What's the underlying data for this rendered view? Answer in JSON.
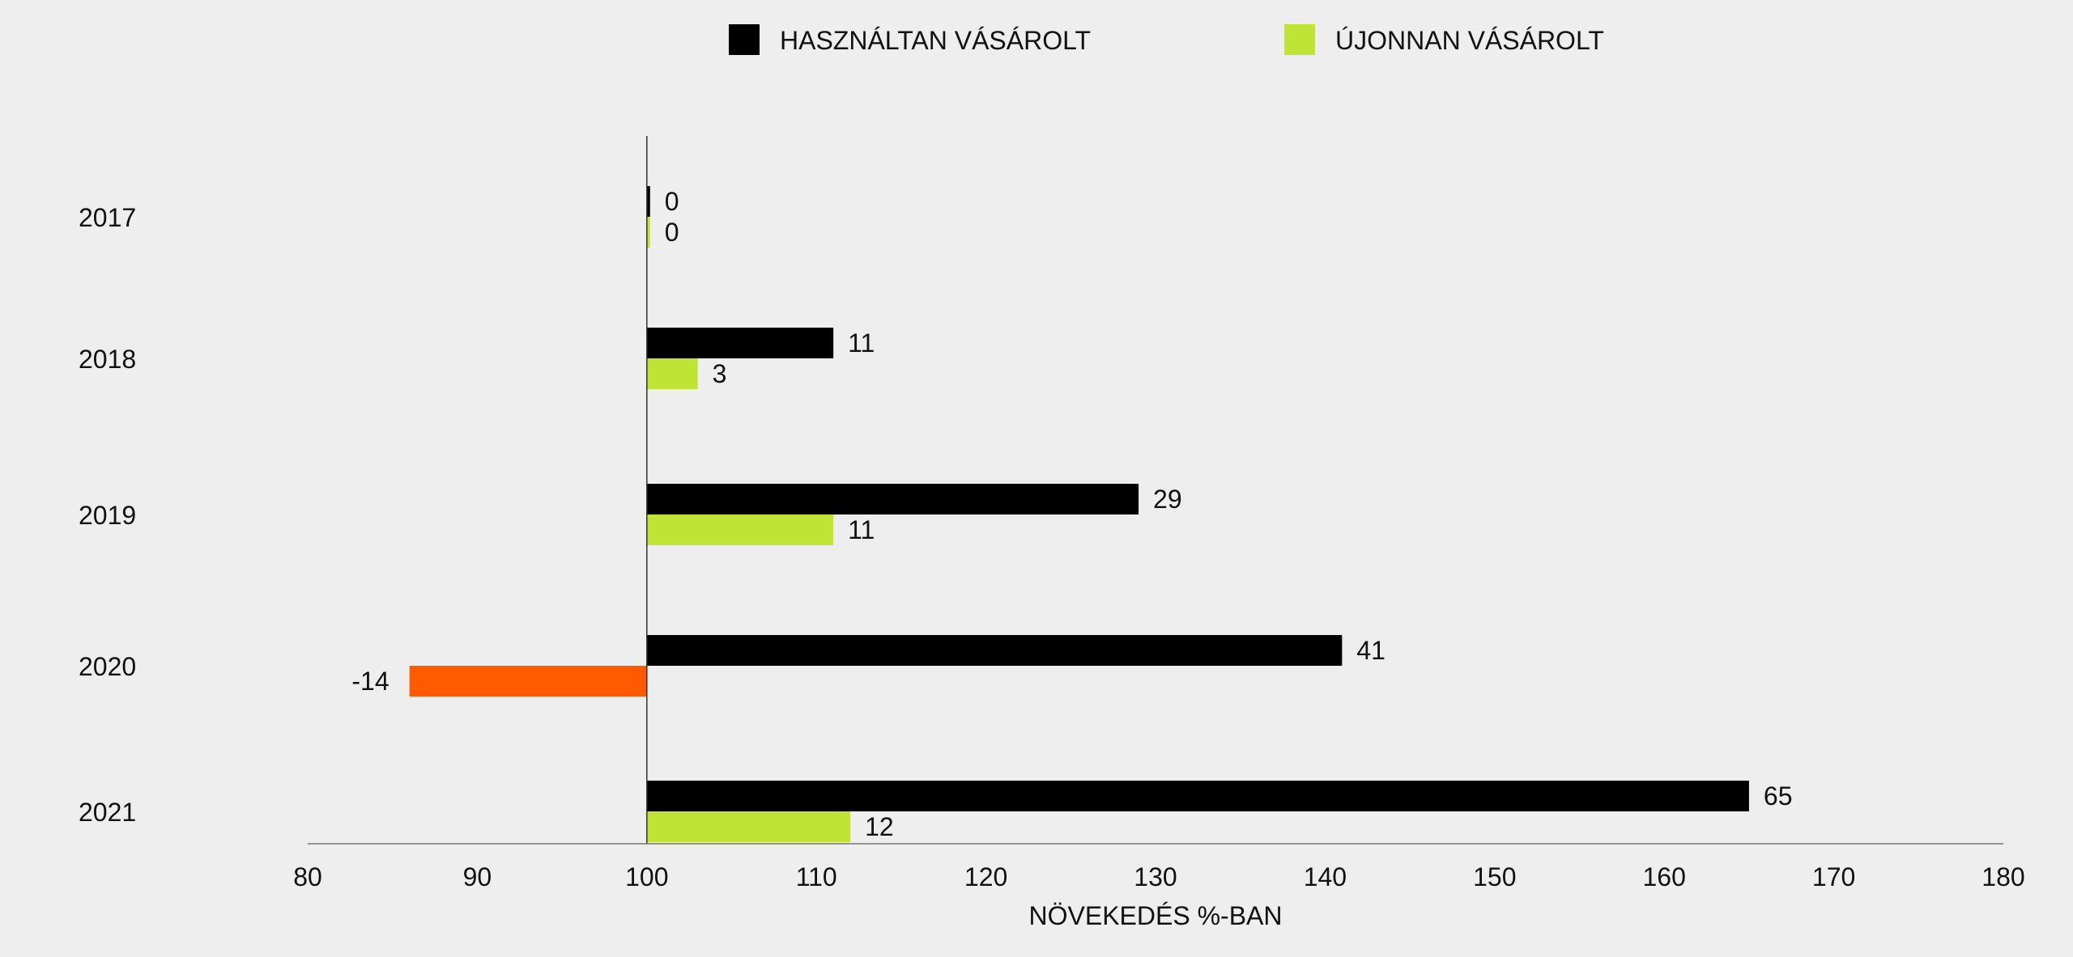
{
  "chart_data": {
    "type": "bar",
    "orientation": "horizontal",
    "title": "",
    "categories": [
      "2017",
      "2018",
      "2019",
      "2020",
      "2021"
    ],
    "series": [
      {
        "name": "HASZNÁLTAN VÁSÁROLT",
        "color": "#000000",
        "values": [
          0,
          11,
          29,
          41,
          65
        ],
        "labels": [
          "0",
          "11",
          "29",
          "41",
          "65"
        ]
      },
      {
        "name": "ÚJONNAN VÁSÁROLT",
        "color": "#bfe436",
        "values": [
          0,
          3,
          11,
          -14,
          12
        ],
        "labels": [
          "0",
          "3",
          "11",
          "-14",
          "12"
        ]
      }
    ],
    "negative_color": "#ff5a00",
    "baseline": 100,
    "xlabel": "NÖVEKEDÉS %-BAN",
    "ylabel": "",
    "xlim": [
      80,
      180
    ],
    "xticks": [
      "80",
      "90",
      "100",
      "110",
      "120",
      "130",
      "140",
      "150",
      "160",
      "170",
      "180"
    ],
    "grid": false,
    "legend_position": "top-center"
  }
}
